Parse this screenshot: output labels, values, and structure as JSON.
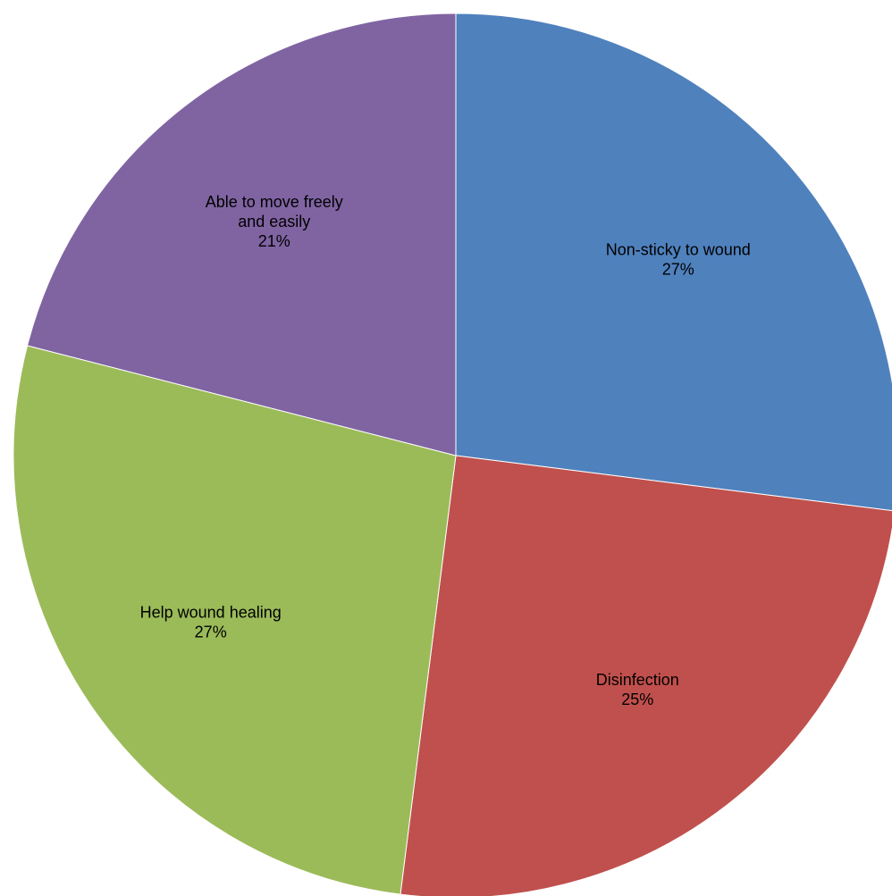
{
  "chart_data": {
    "type": "pie",
    "title": "",
    "start_angle_deg": 0,
    "direction": "clockwise",
    "slices": [
      {
        "label_lines": [
          "Non-sticky to wound"
        ],
        "percent_label": "27%",
        "value": 27,
        "color": "#4F81BD"
      },
      {
        "label_lines": [
          "Disinfection"
        ],
        "percent_label": "25%",
        "value": 25,
        "color": "#C0504D"
      },
      {
        "label_lines": [
          "Help wound healing"
        ],
        "percent_label": "27%",
        "value": 27,
        "color": "#9BBB59"
      },
      {
        "label_lines": [
          "Able to move freely",
          "and easily"
        ],
        "percent_label": "21%",
        "value": 21,
        "color": "#8064A2"
      }
    ],
    "legend": "none"
  }
}
